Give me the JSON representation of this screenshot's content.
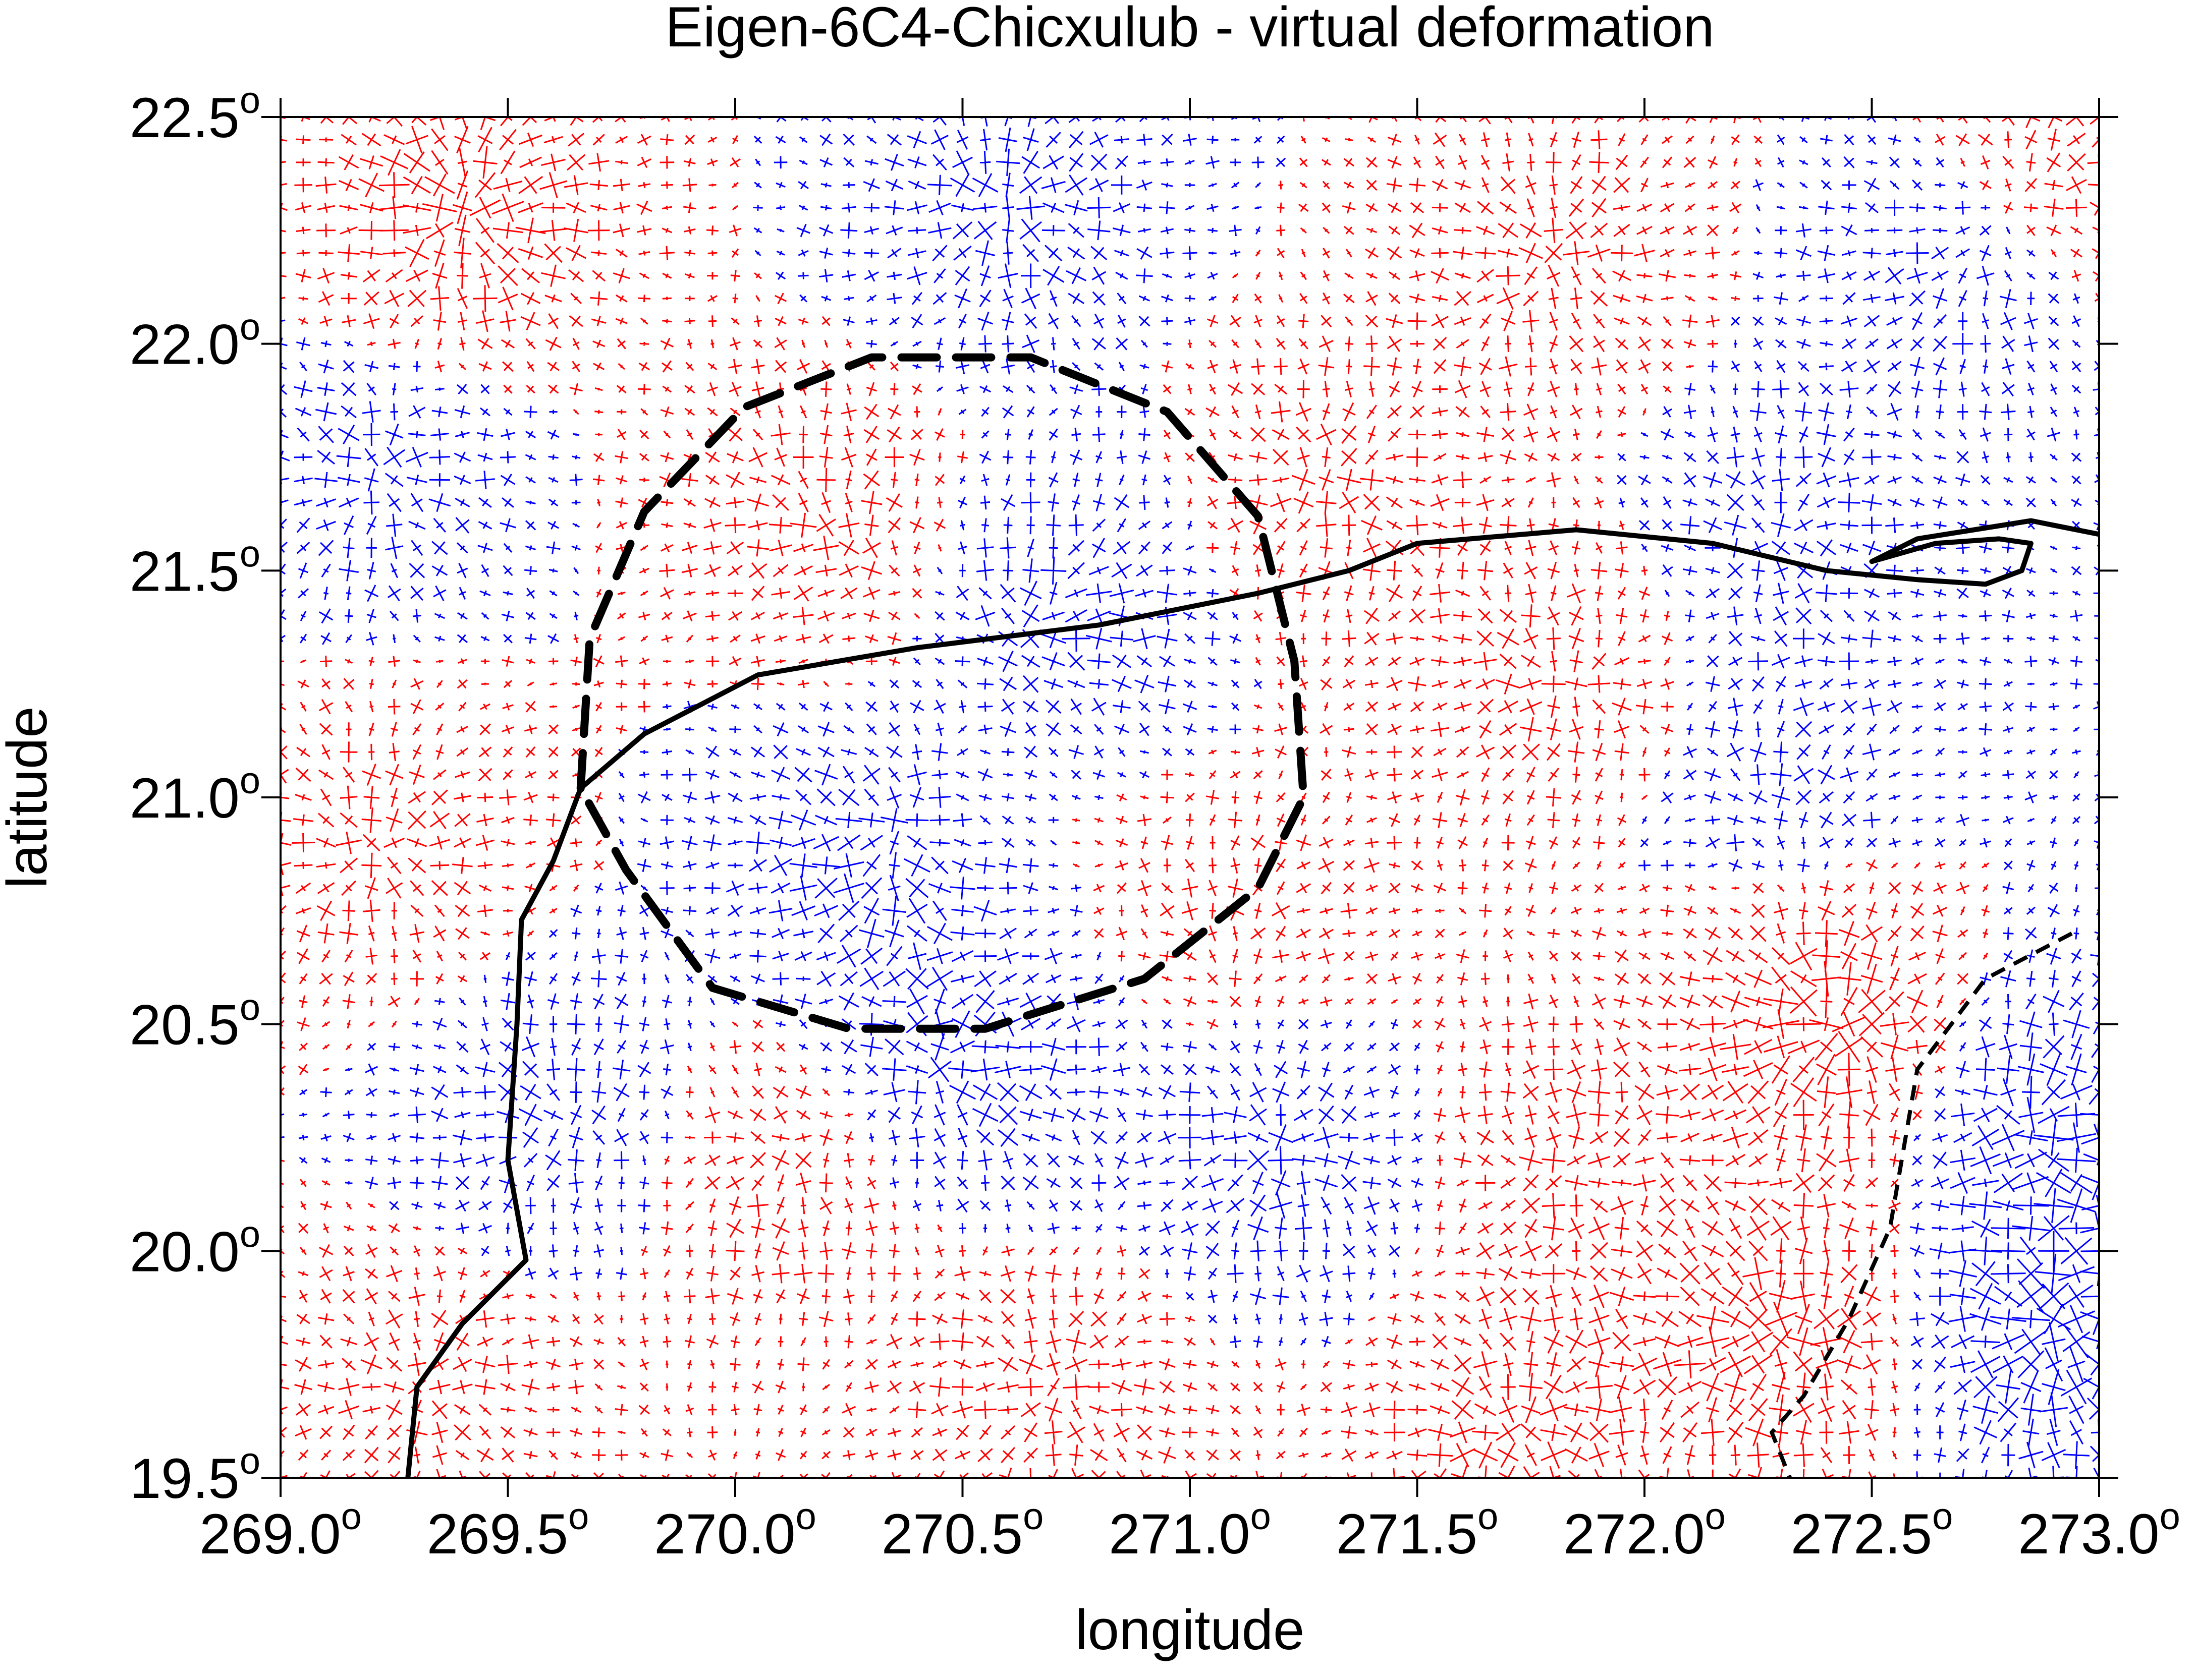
{
  "chart_data": {
    "type": "vector_field_map",
    "title": "Eigen-6C4-Chicxulub - virtual deformation",
    "xlabel": "longitude",
    "ylabel": "latitude",
    "xlim": [
      269.0,
      273.0
    ],
    "ylim": [
      19.5,
      22.5
    ],
    "x_ticks": [
      {
        "value": 269.0,
        "label": "269.0",
        "suffix": "o"
      },
      {
        "value": 269.5,
        "label": "269.5",
        "suffix": "o"
      },
      {
        "value": 270.0,
        "label": "270.0",
        "suffix": "o"
      },
      {
        "value": 270.5,
        "label": "270.5",
        "suffix": "o"
      },
      {
        "value": 271.0,
        "label": "271.0",
        "suffix": "o"
      },
      {
        "value": 271.5,
        "label": "271.5",
        "suffix": "o"
      },
      {
        "value": 272.0,
        "label": "272.0",
        "suffix": "o"
      },
      {
        "value": 272.5,
        "label": "272.5",
        "suffix": "o"
      },
      {
        "value": 273.0,
        "label": "273.0",
        "suffix": "o"
      }
    ],
    "y_ticks": [
      {
        "value": 19.5,
        "label": "19.5",
        "suffix": "o"
      },
      {
        "value": 20.0,
        "label": "20.0",
        "suffix": "o"
      },
      {
        "value": 20.5,
        "label": "20.5",
        "suffix": "o"
      },
      {
        "value": 21.0,
        "label": "21.0",
        "suffix": "o"
      },
      {
        "value": 21.5,
        "label": "21.5",
        "suffix": "o"
      },
      {
        "value": 22.0,
        "label": "22.0",
        "suffix": "o"
      },
      {
        "value": 22.5,
        "label": "22.5",
        "suffix": "o"
      }
    ],
    "colors": {
      "extension": "#ff0000",
      "compression": "#0000ff",
      "coast": "#000000",
      "crater": "#000000"
    },
    "grid_step_deg": 0.05,
    "field_regions": [
      {
        "lon": 269.4,
        "lat": 22.3,
        "sign": "red",
        "strength": 1.0
      },
      {
        "lon": 270.6,
        "lat": 22.3,
        "sign": "blue",
        "strength": 0.7
      },
      {
        "lon": 271.8,
        "lat": 22.2,
        "sign": "red",
        "strength": 0.6
      },
      {
        "lon": 272.7,
        "lat": 22.2,
        "sign": "blue",
        "strength": 0.7
      },
      {
        "lon": 272.9,
        "lat": 22.4,
        "sign": "red",
        "strength": 0.8
      },
      {
        "lon": 269.2,
        "lat": 21.7,
        "sign": "blue",
        "strength": 0.6
      },
      {
        "lon": 270.2,
        "lat": 21.6,
        "sign": "red",
        "strength": 0.6
      },
      {
        "lon": 270.7,
        "lat": 21.4,
        "sign": "blue",
        "strength": 0.8
      },
      {
        "lon": 271.3,
        "lat": 21.7,
        "sign": "red",
        "strength": 0.5
      },
      {
        "lon": 272.3,
        "lat": 21.6,
        "sign": "blue",
        "strength": 0.5
      },
      {
        "lon": 271.8,
        "lat": 21.25,
        "sign": "red",
        "strength": 0.6
      },
      {
        "lon": 269.2,
        "lat": 20.9,
        "sign": "red",
        "strength": 0.6
      },
      {
        "lon": 270.3,
        "lat": 20.9,
        "sign": "blue",
        "strength": 0.9
      },
      {
        "lon": 270.5,
        "lat": 21.1,
        "sign": "red",
        "strength": 0.4
      },
      {
        "lon": 272.3,
        "lat": 21.0,
        "sign": "blue",
        "strength": 0.5
      },
      {
        "lon": 271.1,
        "lat": 20.7,
        "sign": "red",
        "strength": 0.4
      },
      {
        "lon": 269.6,
        "lat": 20.3,
        "sign": "blue",
        "strength": 0.6
      },
      {
        "lon": 270.1,
        "lat": 20.2,
        "sign": "red",
        "strength": 0.6
      },
      {
        "lon": 270.5,
        "lat": 20.4,
        "sign": "blue",
        "strength": 0.8
      },
      {
        "lon": 271.2,
        "lat": 20.2,
        "sign": "blue",
        "strength": 0.7
      },
      {
        "lon": 271.8,
        "lat": 20.2,
        "sign": "red",
        "strength": 0.5
      },
      {
        "lon": 272.4,
        "lat": 20.5,
        "sign": "red",
        "strength": 1.2
      },
      {
        "lon": 272.9,
        "lat": 20.3,
        "sign": "blue",
        "strength": 1.1
      },
      {
        "lon": 272.9,
        "lat": 19.8,
        "sign": "blue",
        "strength": 1.2
      },
      {
        "lon": 272.3,
        "lat": 19.8,
        "sign": "red",
        "strength": 1.0
      },
      {
        "lon": 269.3,
        "lat": 19.7,
        "sign": "red",
        "strength": 0.5
      },
      {
        "lon": 270.7,
        "lat": 19.7,
        "sign": "red",
        "strength": 0.6
      },
      {
        "lon": 271.7,
        "lat": 19.6,
        "sign": "red",
        "strength": 0.7
      }
    ],
    "crater_ring": [
      [
        269.66,
        21.02
      ],
      [
        269.68,
        21.35
      ],
      [
        269.8,
        21.63
      ],
      [
        270.02,
        21.86
      ],
      [
        270.3,
        21.97
      ],
      [
        270.65,
        21.97
      ],
      [
        270.95,
        21.85
      ],
      [
        271.15,
        21.62
      ],
      [
        271.23,
        21.3
      ],
      [
        271.25,
        21.0
      ],
      [
        271.15,
        20.8
      ],
      [
        270.9,
        20.6
      ],
      [
        270.55,
        20.49
      ],
      [
        270.25,
        20.49
      ],
      [
        269.95,
        20.58
      ],
      [
        269.76,
        20.84
      ],
      [
        269.66,
        21.02
      ]
    ],
    "coastline": [
      [
        269.28,
        19.5
      ],
      [
        269.3,
        19.7
      ],
      [
        269.4,
        19.84
      ],
      [
        269.54,
        19.98
      ],
      [
        269.5,
        20.2
      ],
      [
        269.52,
        20.5
      ],
      [
        269.53,
        20.73
      ],
      [
        269.6,
        20.86
      ],
      [
        269.66,
        21.02
      ],
      [
        269.8,
        21.14
      ],
      [
        270.05,
        21.27
      ],
      [
        270.4,
        21.33
      ],
      [
        270.8,
        21.38
      ],
      [
        271.15,
        21.45
      ],
      [
        271.35,
        21.5
      ],
      [
        271.5,
        21.56
      ],
      [
        271.85,
        21.59
      ],
      [
        272.15,
        21.56
      ],
      [
        272.4,
        21.5
      ],
      [
        272.6,
        21.48
      ],
      [
        272.75,
        21.47
      ],
      [
        272.83,
        21.5
      ],
      [
        272.85,
        21.56
      ],
      [
        272.78,
        21.57
      ],
      [
        272.64,
        21.56
      ],
      [
        272.5,
        21.52
      ],
      [
        272.6,
        21.57
      ],
      [
        272.85,
        21.61
      ],
      [
        273.0,
        21.58
      ]
    ],
    "east_boundary": [
      [
        272.94,
        20.7
      ],
      [
        272.75,
        20.6
      ],
      [
        272.6,
        20.4
      ],
      [
        272.54,
        20.05
      ],
      [
        272.45,
        19.85
      ],
      [
        272.35,
        19.68
      ],
      [
        272.28,
        19.6
      ],
      [
        272.32,
        19.5
      ]
    ]
  }
}
